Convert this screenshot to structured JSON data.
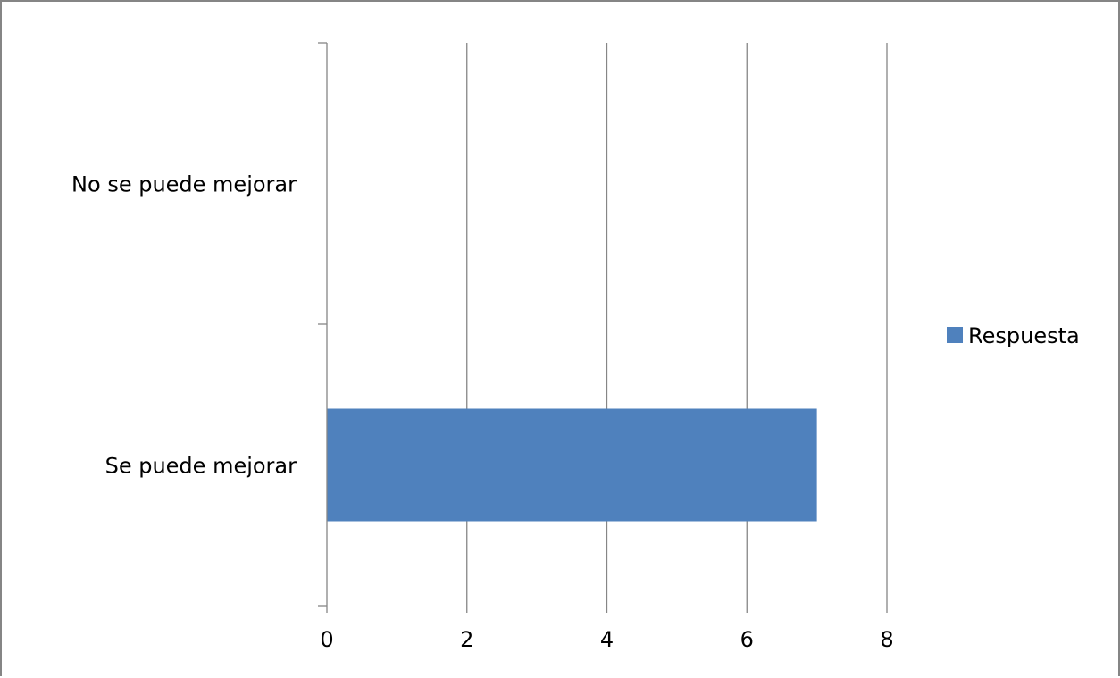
{
  "chart_data": {
    "type": "bar",
    "orientation": "horizontal",
    "categories": [
      "Se puede mejorar",
      "No se puede mejorar"
    ],
    "series": [
      {
        "name": "Respuesta",
        "values": [
          7,
          0
        ],
        "color": "#4F81BD"
      }
    ],
    "x_ticks": [
      "0",
      "2",
      "4",
      "6",
      "8"
    ],
    "xlim": [
      0,
      8
    ],
    "grid": true,
    "legend": {
      "position": "right",
      "labels": [
        "Respuesta"
      ]
    },
    "title": "",
    "xlabel": "",
    "ylabel": ""
  }
}
